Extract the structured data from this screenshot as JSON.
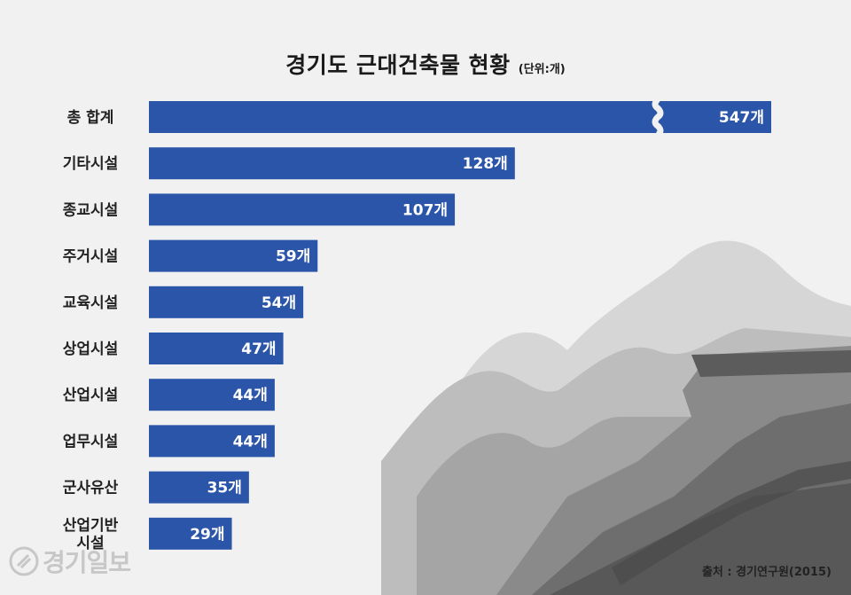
{
  "title": "경기도 근대건축물 현황",
  "unit_note": "(단위:개)",
  "source": "출처 : 경기연구원(2015)",
  "logo_text": "경기일보",
  "colors": {
    "bar": "#2b55a8",
    "background": "#f1f1f1"
  },
  "chart_data": {
    "type": "bar",
    "orientation": "horizontal",
    "title": "경기도 근대건축물 현황",
    "unit": "(단위:개)",
    "categories": [
      "총 합계",
      "기타시설",
      "종교시설",
      "주거시설",
      "교육시설",
      "상업시설",
      "산업시설",
      "업무시설",
      "군사유산",
      "산업기반 시설"
    ],
    "values": [
      547,
      128,
      107,
      59,
      54,
      47,
      44,
      44,
      35,
      29
    ],
    "value_labels": [
      "547개",
      "128개",
      "107개",
      "59개",
      "54개",
      "47개",
      "44개",
      "44개",
      "35개",
      "29개"
    ],
    "axis_break_on": "총 합계",
    "grid": false,
    "legend": "none"
  }
}
